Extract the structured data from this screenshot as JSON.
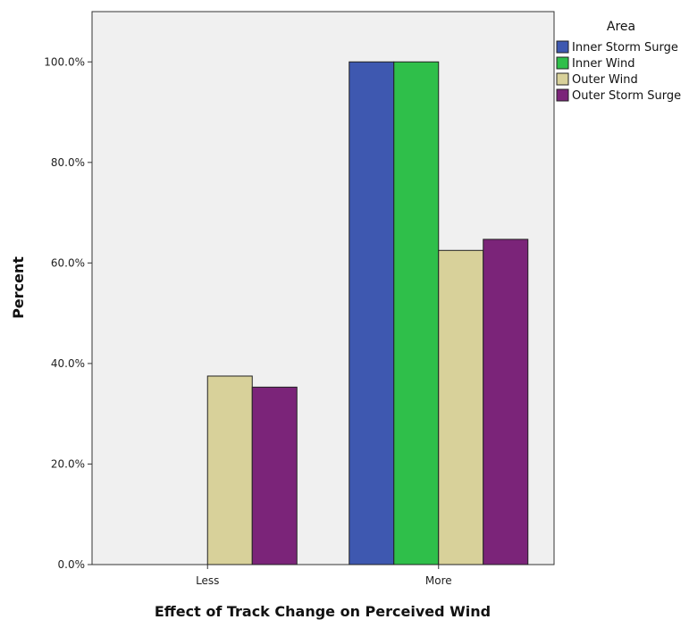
{
  "chart_data": {
    "type": "bar",
    "title": "",
    "xlabel": "Effect of Track Change on Perceived Wind",
    "ylabel": "Percent",
    "categories": [
      "Less",
      "More"
    ],
    "ylim": [
      0,
      110
    ],
    "yticks": [
      0,
      20,
      40,
      60,
      80,
      100
    ],
    "ytick_labels": [
      "0.0%",
      "20.0%",
      "40.0%",
      "60.0%",
      "80.0%",
      "100.0%"
    ],
    "grid": false,
    "background_color": "#f0f0f0",
    "legend": {
      "title": "Area",
      "placement": "right"
    },
    "series": [
      {
        "name": "Inner Storm Surge",
        "color": "#3e58b0",
        "values": [
          0,
          100
        ]
      },
      {
        "name": "Inner Wind",
        "color": "#2fbf4a",
        "values": [
          0,
          100
        ]
      },
      {
        "name": "Outer Wind",
        "color": "#d8d19a",
        "values": [
          37.5,
          62.5
        ]
      },
      {
        "name": "Outer Storm Surge",
        "color": "#7b2479",
        "values": [
          35.3,
          64.7
        ]
      }
    ]
  }
}
